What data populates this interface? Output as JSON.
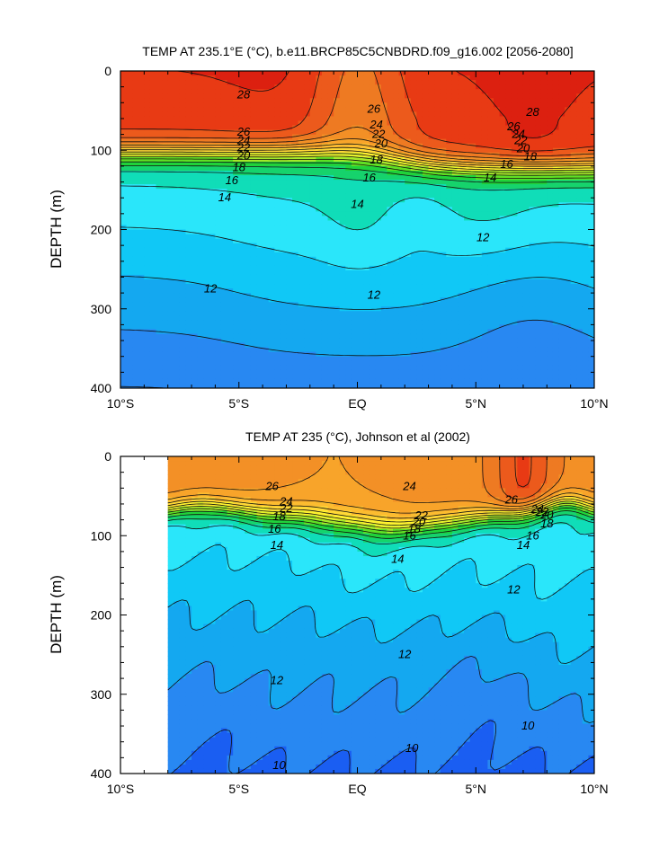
{
  "chart_data": [
    {
      "type": "heatmap",
      "title": "TEMP AT 235.1°E (°C), b.e11.BRCP85C5CNBDRD.f09_g16.002 [2056-2080]",
      "ylabel": "DEPTH (m)",
      "x_ticks": [
        "10°S",
        "5°S",
        "EQ",
        "5°N",
        "10°N"
      ],
      "x_tick_values": [
        -10,
        -5,
        0,
        5,
        10
      ],
      "y_ticks": [
        "0",
        "100",
        "200",
        "300",
        "400"
      ],
      "y_tick_values": [
        0,
        100,
        200,
        300,
        400
      ],
      "xlim": [
        -10,
        10
      ],
      "ylim": [
        0,
        400
      ],
      "y_inverted": true,
      "data_extent": [
        -10,
        10
      ],
      "levels": [
        10,
        11,
        12,
        13,
        14,
        15,
        16,
        17,
        18,
        19,
        20,
        21,
        22,
        23,
        24,
        25,
        26,
        27,
        28,
        29
      ],
      "contour_labels": [
        {
          "text": "28",
          "x": -4.8,
          "y": 30
        },
        {
          "text": "26",
          "x": -4.8,
          "y": 77
        },
        {
          "text": "24",
          "x": -4.8,
          "y": 88
        },
        {
          "text": "22",
          "x": -4.8,
          "y": 97
        },
        {
          "text": "20",
          "x": -4.8,
          "y": 107
        },
        {
          "text": "18",
          "x": -5.0,
          "y": 122
        },
        {
          "text": "16",
          "x": -5.3,
          "y": 138
        },
        {
          "text": "14",
          "x": -5.6,
          "y": 160
        },
        {
          "text": "26",
          "x": 0.7,
          "y": 48
        },
        {
          "text": "24",
          "x": 0.8,
          "y": 68
        },
        {
          "text": "22",
          "x": 0.9,
          "y": 80
        },
        {
          "text": "20",
          "x": 1.0,
          "y": 92
        },
        {
          "text": "18",
          "x": 0.8,
          "y": 112
        },
        {
          "text": "16",
          "x": 0.5,
          "y": 135
        },
        {
          "text": "14",
          "x": 0.0,
          "y": 168
        },
        {
          "text": "28",
          "x": 7.4,
          "y": 52
        },
        {
          "text": "26",
          "x": 6.6,
          "y": 70
        },
        {
          "text": "24",
          "x": 6.8,
          "y": 80
        },
        {
          "text": "22",
          "x": 6.9,
          "y": 88
        },
        {
          "text": "20",
          "x": 7.0,
          "y": 98
        },
        {
          "text": "18",
          "x": 7.3,
          "y": 108
        },
        {
          "text": "16",
          "x": 6.3,
          "y": 118
        },
        {
          "text": "14",
          "x": 5.6,
          "y": 135
        },
        {
          "text": "12",
          "x": 5.3,
          "y": 210
        },
        {
          "text": "12",
          "x": -6.2,
          "y": 275
        },
        {
          "text": "12",
          "x": 0.7,
          "y": 283
        }
      ]
    },
    {
      "type": "heatmap",
      "title": "TEMP AT 235 (°C), Johnson et al (2002)",
      "ylabel": "DEPTH (m)",
      "x_ticks": [
        "10°S",
        "5°S",
        "EQ",
        "5°N",
        "10°N"
      ],
      "x_tick_values": [
        -10,
        -5,
        0,
        5,
        10
      ],
      "y_ticks": [
        "0",
        "100",
        "200",
        "300",
        "400"
      ],
      "y_tick_values": [
        0,
        100,
        200,
        300,
        400
      ],
      "xlim": [
        -10,
        10
      ],
      "ylim": [
        0,
        400
      ],
      "y_inverted": true,
      "data_extent": [
        -8,
        10
      ],
      "levels": [
        10,
        11,
        12,
        13,
        14,
        15,
        16,
        17,
        18,
        19,
        20,
        21,
        22,
        23,
        24,
        25,
        26,
        27,
        28,
        29
      ],
      "contour_labels": [
        {
          "text": "26",
          "x": -3.6,
          "y": 38
        },
        {
          "text": "24",
          "x": -3.0,
          "y": 57
        },
        {
          "text": "22",
          "x": -3.0,
          "y": 66
        },
        {
          "text": "18",
          "x": -3.3,
          "y": 76
        },
        {
          "text": "16",
          "x": -3.5,
          "y": 92
        },
        {
          "text": "14",
          "x": -3.4,
          "y": 112
        },
        {
          "text": "24",
          "x": 2.2,
          "y": 38
        },
        {
          "text": "22",
          "x": 2.7,
          "y": 75
        },
        {
          "text": "20",
          "x": 2.6,
          "y": 83
        },
        {
          "text": "18",
          "x": 2.4,
          "y": 92
        },
        {
          "text": "16",
          "x": 2.2,
          "y": 100
        },
        {
          "text": "14",
          "x": 1.7,
          "y": 130
        },
        {
          "text": "26",
          "x": 6.5,
          "y": 55
        },
        {
          "text": "24",
          "x": 7.6,
          "y": 67
        },
        {
          "text": "22",
          "x": 7.8,
          "y": 70
        },
        {
          "text": "20",
          "x": 8.0,
          "y": 74
        },
        {
          "text": "18",
          "x": 8.0,
          "y": 85
        },
        {
          "text": "16",
          "x": 7.4,
          "y": 100
        },
        {
          "text": "14",
          "x": 7.0,
          "y": 112
        },
        {
          "text": "12",
          "x": 6.6,
          "y": 168
        },
        {
          "text": "12",
          "x": 2.0,
          "y": 250
        },
        {
          "text": "12",
          "x": -3.4,
          "y": 283
        },
        {
          "text": "10",
          "x": 7.2,
          "y": 340
        },
        {
          "text": "10",
          "x": 2.3,
          "y": 368
        },
        {
          "text": "10",
          "x": -3.3,
          "y": 390
        }
      ]
    }
  ]
}
